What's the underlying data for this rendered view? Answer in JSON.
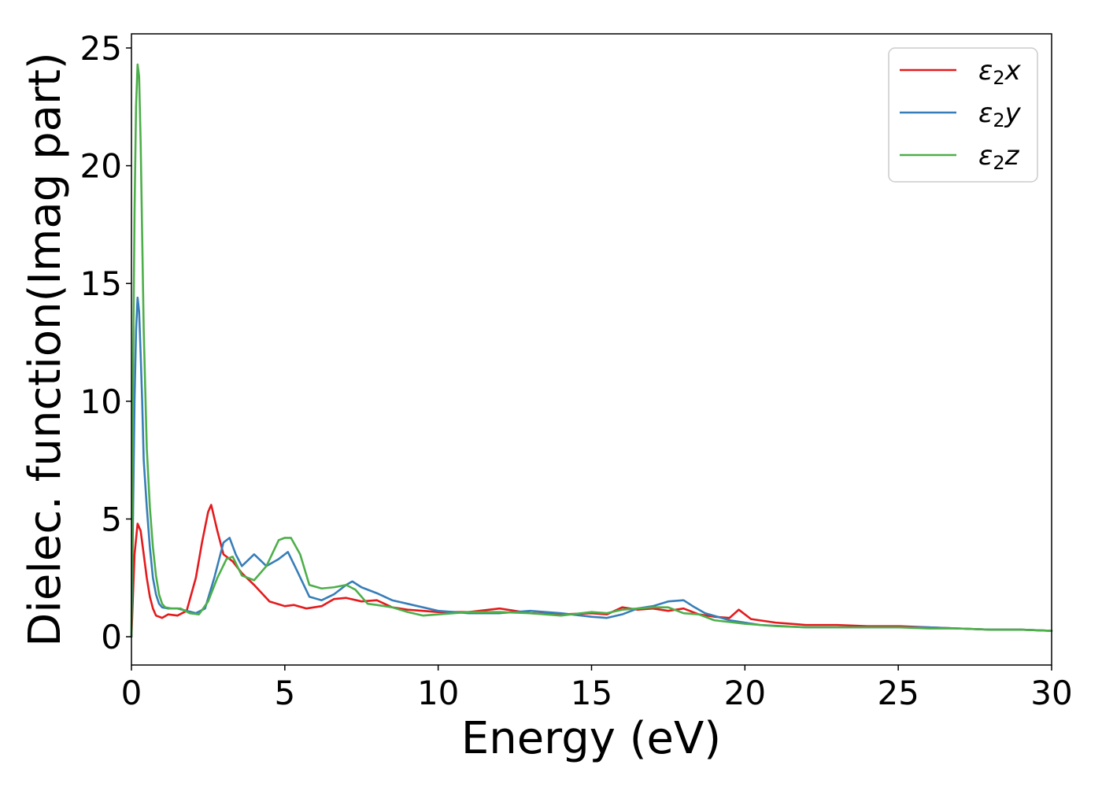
{
  "chart_data": {
    "type": "line",
    "title": "",
    "xlabel": "Energy (eV)",
    "ylabel": "Dielec. function(Imag part)",
    "xlim": [
      0,
      30
    ],
    "ylim": [
      -1.2,
      25.6
    ],
    "xticks": [
      0,
      5,
      10,
      15,
      20,
      25,
      30
    ],
    "yticks": [
      0,
      5,
      10,
      15,
      20,
      25
    ],
    "grid": false,
    "legend_position": "top-right",
    "series": [
      {
        "name": "ε2x",
        "label_main": "ε",
        "label_sub": "2",
        "label_suffix": "x",
        "color": "#e41a1c",
        "x": [
          0,
          0.1,
          0.2,
          0.3,
          0.4,
          0.5,
          0.6,
          0.7,
          0.8,
          1.0,
          1.2,
          1.5,
          1.8,
          2.1,
          2.3,
          2.5,
          2.6,
          2.8,
          3.0,
          3.3,
          3.6,
          4.0,
          4.5,
          5.0,
          5.3,
          5.7,
          6.2,
          6.6,
          7.0,
          7.5,
          8.0,
          8.5,
          9.0,
          10.0,
          11.0,
          12.0,
          13.0,
          14.0,
          15.0,
          15.5,
          16.0,
          16.5,
          17.0,
          17.5,
          18.0,
          18.5,
          19.0,
          19.5,
          19.8,
          20.2,
          21.0,
          22.0,
          23.0,
          24.0,
          25.0,
          26.0,
          27.0,
          28.0,
          29.0,
          30.0
        ],
        "values": [
          0,
          3.5,
          4.8,
          4.5,
          3.5,
          2.5,
          1.7,
          1.2,
          0.9,
          0.8,
          0.95,
          0.9,
          1.1,
          2.5,
          4.0,
          5.3,
          5.6,
          4.5,
          3.5,
          3.2,
          2.7,
          2.2,
          1.5,
          1.3,
          1.35,
          1.2,
          1.3,
          1.6,
          1.65,
          1.5,
          1.55,
          1.25,
          1.15,
          1.05,
          1.05,
          1.2,
          1.0,
          0.95,
          1.0,
          0.95,
          1.25,
          1.15,
          1.2,
          1.1,
          1.2,
          0.95,
          0.85,
          0.8,
          1.15,
          0.75,
          0.6,
          0.5,
          0.5,
          0.45,
          0.45,
          0.4,
          0.35,
          0.3,
          0.3,
          0.25
        ]
      },
      {
        "name": "ε2y",
        "label_main": "ε",
        "label_sub": "2",
        "label_suffix": "y",
        "color": "#377eb8",
        "x": [
          0,
          0.05,
          0.1,
          0.15,
          0.2,
          0.25,
          0.3,
          0.35,
          0.4,
          0.5,
          0.6,
          0.7,
          0.8,
          0.9,
          1.0,
          1.2,
          1.5,
          1.8,
          2.1,
          2.4,
          2.7,
          3.0,
          3.2,
          3.4,
          3.6,
          4.0,
          4.4,
          4.8,
          5.1,
          5.4,
          5.8,
          6.2,
          6.6,
          7.0,
          7.2,
          7.5,
          8.0,
          8.5,
          9.0,
          10.0,
          11.0,
          12.0,
          13.0,
          14.0,
          15.0,
          15.5,
          16.0,
          16.5,
          17.0,
          17.5,
          18.0,
          18.3,
          18.7,
          19.5,
          20.5,
          22.0,
          23.0,
          24.0,
          25.0,
          26.0,
          27.0,
          28.0,
          29.0,
          30.0
        ],
        "values": [
          0,
          5.0,
          10.0,
          13.0,
          14.4,
          13.8,
          12.0,
          10.0,
          7.5,
          5.5,
          3.8,
          2.5,
          1.8,
          1.4,
          1.25,
          1.2,
          1.2,
          1.1,
          1.0,
          1.2,
          2.5,
          4.0,
          4.2,
          3.5,
          3.0,
          3.5,
          3.0,
          3.3,
          3.6,
          2.8,
          1.7,
          1.55,
          1.8,
          2.2,
          2.35,
          2.1,
          1.85,
          1.55,
          1.4,
          1.1,
          1.0,
          1.0,
          1.1,
          1.0,
          0.85,
          0.8,
          0.95,
          1.2,
          1.3,
          1.5,
          1.55,
          1.3,
          1.0,
          0.7,
          0.5,
          0.4,
          0.4,
          0.4,
          0.4,
          0.4,
          0.35,
          0.3,
          0.3,
          0.25
        ]
      },
      {
        "name": "ε2z",
        "label_main": "ε",
        "label_sub": "2",
        "label_suffix": "z",
        "color": "#4daf4a",
        "x": [
          0,
          0.05,
          0.1,
          0.15,
          0.2,
          0.25,
          0.3,
          0.35,
          0.4,
          0.5,
          0.6,
          0.7,
          0.8,
          0.9,
          1.0,
          1.1,
          1.3,
          1.6,
          1.9,
          2.2,
          2.5,
          2.8,
          3.1,
          3.3,
          3.6,
          4.0,
          4.4,
          4.8,
          5.0,
          5.2,
          5.5,
          5.8,
          6.2,
          6.6,
          7.0,
          7.3,
          7.7,
          8.0,
          8.5,
          9.0,
          9.5,
          10.0,
          11.0,
          12.0,
          13.0,
          14.0,
          15.0,
          15.5,
          16.0,
          16.5,
          17.0,
          17.5,
          18.0,
          18.5,
          19.0,
          20.0,
          21.0,
          22.0,
          23.0,
          24.0,
          25.0,
          26.0,
          27.0,
          28.0,
          29.0,
          30.0
        ],
        "values": [
          0,
          11.0,
          18.0,
          22.5,
          24.3,
          23.8,
          21.0,
          17.0,
          13.0,
          8.0,
          5.5,
          3.8,
          2.6,
          1.8,
          1.4,
          1.25,
          1.2,
          1.2,
          1.0,
          0.95,
          1.5,
          2.5,
          3.3,
          3.4,
          2.6,
          2.4,
          3.0,
          4.1,
          4.2,
          4.2,
          3.5,
          2.2,
          2.05,
          2.1,
          2.2,
          2.0,
          1.4,
          1.35,
          1.25,
          1.05,
          0.9,
          0.95,
          1.05,
          1.05,
          1.0,
          0.9,
          1.05,
          1.0,
          1.15,
          1.2,
          1.25,
          1.25,
          1.0,
          0.95,
          0.7,
          0.55,
          0.45,
          0.4,
          0.4,
          0.4,
          0.4,
          0.35,
          0.35,
          0.3,
          0.3,
          0.25
        ]
      }
    ]
  }
}
